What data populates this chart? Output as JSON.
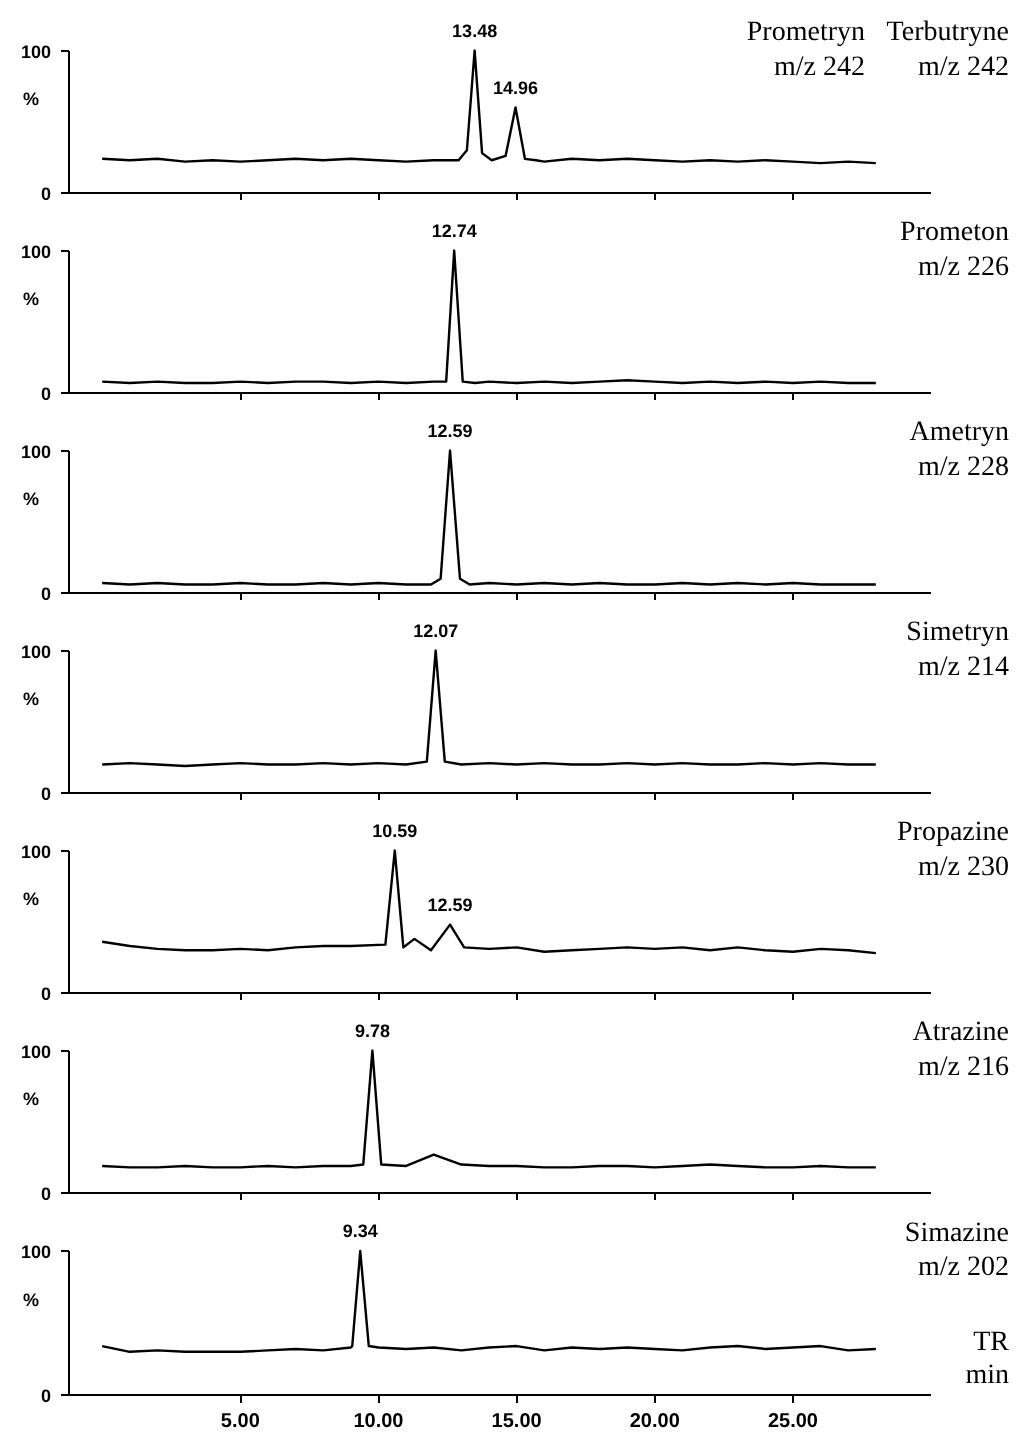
{
  "chart_data": [
    {
      "type": "line",
      "x": [
        0,
        1,
        2,
        3,
        4,
        5,
        6,
        7,
        8,
        9,
        10,
        11,
        12,
        12.9,
        13.2,
        13.48,
        13.75,
        14.1,
        14.6,
        14.96,
        15.3,
        15.7,
        16,
        17,
        18,
        19,
        20,
        21,
        22,
        23,
        24,
        25,
        26,
        27,
        28
      ],
      "values": [
        24,
        23,
        24,
        22,
        23,
        22,
        23,
        24,
        23,
        24,
        23,
        22,
        23,
        23,
        30,
        100,
        28,
        23,
        26,
        60,
        24,
        23,
        22,
        24,
        23,
        24,
        23,
        22,
        23,
        22,
        23,
        22,
        21,
        22,
        21
      ],
      "color": "#000000",
      "xlim": [
        -1.2,
        30
      ],
      "ylim": [
        0,
        100
      ],
      "xticks": [
        {
          "value": 5,
          "label": null
        },
        {
          "value": 10,
          "label": null
        },
        {
          "value": 15,
          "label": null
        },
        {
          "value": 20,
          "label": null
        },
        {
          "value": 25,
          "label": null
        }
      ],
      "yticks": [
        0,
        100
      ],
      "ylabel": "%",
      "tick_labels": "y",
      "annotations": [
        {
          "text": "13.48",
          "x": 13.48,
          "y": 100
        },
        {
          "text": "14.96",
          "x": 14.96,
          "y": 60
        },
        "Prometryn\nm/z 242",
        "Terbutryne\nm/z 242"
      ]
    },
    {
      "type": "line",
      "x": [
        0,
        1,
        2,
        3,
        4,
        5,
        6,
        7,
        8,
        9,
        10,
        11,
        12,
        12.45,
        12.74,
        13.05,
        13.5,
        14,
        15,
        16,
        17,
        18,
        19,
        20,
        21,
        22,
        23,
        24,
        25,
        26,
        27,
        28
      ],
      "values": [
        8,
        7,
        8,
        7,
        7,
        8,
        7,
        8,
        8,
        7,
        8,
        7,
        8,
        8,
        100,
        8,
        7,
        8,
        7,
        8,
        7,
        8,
        9,
        8,
        7,
        8,
        7,
        8,
        7,
        8,
        7,
        7
      ],
      "color": "#000000",
      "xlim": [
        -1.2,
        30
      ],
      "ylim": [
        0,
        100
      ],
      "xticks": [
        {
          "value": 5,
          "label": null
        },
        {
          "value": 10,
          "label": null
        },
        {
          "value": 15,
          "label": null
        },
        {
          "value": 20,
          "label": null
        },
        {
          "value": 25,
          "label": null
        }
      ],
      "yticks": [
        0,
        100
      ],
      "ylabel": "%",
      "tick_labels": "y",
      "annotations": [
        {
          "text": "12.74",
          "x": 12.74,
          "y": 100
        },
        "Prometon\nm/z 226"
      ]
    },
    {
      "type": "line",
      "x": [
        0,
        1,
        2,
        3,
        4,
        5,
        6,
        7,
        8,
        9,
        10,
        11,
        11.9,
        12.25,
        12.59,
        12.95,
        13.3,
        14,
        15,
        16,
        17,
        18,
        19,
        20,
        21,
        22,
        23,
        24,
        25,
        26,
        27,
        28
      ],
      "values": [
        7,
        6,
        7,
        6,
        6,
        7,
        6,
        6,
        7,
        6,
        7,
        6,
        6,
        10,
        100,
        10,
        6,
        7,
        6,
        7,
        6,
        7,
        6,
        6,
        7,
        6,
        7,
        6,
        7,
        6,
        6,
        6
      ],
      "color": "#000000",
      "xlim": [
        -1.2,
        30
      ],
      "ylim": [
        0,
        100
      ],
      "xticks": [
        {
          "value": 5,
          "label": null
        },
        {
          "value": 10,
          "label": null
        },
        {
          "value": 15,
          "label": null
        },
        {
          "value": 20,
          "label": null
        },
        {
          "value": 25,
          "label": null
        }
      ],
      "yticks": [
        0,
        100
      ],
      "ylabel": "%",
      "tick_labels": "y",
      "annotations": [
        {
          "text": "12.59",
          "x": 12.59,
          "y": 100
        },
        "Ametryn\nm/z 228"
      ]
    },
    {
      "type": "line",
      "x": [
        0,
        1,
        2,
        3,
        4,
        5,
        6,
        7,
        8,
        9,
        10,
        11,
        11.75,
        12.07,
        12.4,
        13,
        14,
        15,
        16,
        17,
        18,
        19,
        20,
        21,
        22,
        23,
        24,
        25,
        26,
        27,
        28
      ],
      "values": [
        20,
        21,
        20,
        19,
        20,
        21,
        20,
        20,
        21,
        20,
        21,
        20,
        22,
        100,
        22,
        20,
        21,
        20,
        21,
        20,
        20,
        21,
        20,
        21,
        20,
        20,
        21,
        20,
        21,
        20,
        20
      ],
      "color": "#000000",
      "xlim": [
        -1.2,
        30
      ],
      "ylim": [
        0,
        100
      ],
      "xticks": [
        {
          "value": 5,
          "label": null
        },
        {
          "value": 10,
          "label": null
        },
        {
          "value": 15,
          "label": null
        },
        {
          "value": 20,
          "label": null
        },
        {
          "value": 25,
          "label": null
        }
      ],
      "yticks": [
        0,
        100
      ],
      "ylabel": "%",
      "tick_labels": "y",
      "annotations": [
        {
          "text": "12.07",
          "x": 12.07,
          "y": 100
        },
        "Simetryn\nm/z 214"
      ]
    },
    {
      "type": "line",
      "x": [
        0,
        1,
        2,
        3,
        4,
        5,
        6,
        7,
        8,
        9,
        10.25,
        10.59,
        10.9,
        11.3,
        11.9,
        12.59,
        13.1,
        14,
        15,
        16,
        17,
        18,
        19,
        20,
        21,
        22,
        23,
        24,
        25,
        26,
        27,
        28
      ],
      "values": [
        36,
        33,
        31,
        30,
        30,
        31,
        30,
        32,
        33,
        33,
        34,
        100,
        32,
        38,
        30,
        48,
        32,
        31,
        32,
        29,
        30,
        31,
        32,
        31,
        32,
        30,
        32,
        30,
        29,
        31,
        30,
        28
      ],
      "color": "#000000",
      "xlim": [
        -1.2,
        30
      ],
      "ylim": [
        0,
        100
      ],
      "xticks": [
        {
          "value": 5,
          "label": null
        },
        {
          "value": 10,
          "label": null
        },
        {
          "value": 15,
          "label": null
        },
        {
          "value": 20,
          "label": null
        },
        {
          "value": 25,
          "label": null
        }
      ],
      "yticks": [
        0,
        100
      ],
      "ylabel": "%",
      "tick_labels": "y",
      "annotations": [
        {
          "text": "10.59",
          "x": 10.59,
          "y": 100
        },
        {
          "text": "12.59",
          "x": 12.59,
          "y": 48
        },
        "Propazine\nm/z 230"
      ]
    },
    {
      "type": "line",
      "x": [
        0,
        1,
        2,
        3,
        4,
        5,
        6,
        7,
        8,
        9,
        9.45,
        9.78,
        10.1,
        11,
        12,
        13,
        14,
        15,
        16,
        17,
        18,
        19,
        20,
        21,
        22,
        23,
        24,
        25,
        26,
        27,
        28
      ],
      "values": [
        19,
        18,
        18,
        19,
        18,
        18,
        19,
        18,
        19,
        19,
        20,
        100,
        20,
        19,
        27,
        20,
        19,
        19,
        18,
        18,
        19,
        19,
        18,
        19,
        20,
        19,
        18,
        18,
        19,
        18,
        18
      ],
      "color": "#000000",
      "xlim": [
        -1.2,
        30
      ],
      "ylim": [
        0,
        100
      ],
      "xticks": [
        {
          "value": 5,
          "label": null
        },
        {
          "value": 10,
          "label": null
        },
        {
          "value": 15,
          "label": null
        },
        {
          "value": 20,
          "label": null
        },
        {
          "value": 25,
          "label": null
        }
      ],
      "yticks": [
        0,
        100
      ],
      "ylabel": "%",
      "tick_labels": "y",
      "annotations": [
        {
          "text": "9.78",
          "x": 9.78,
          "y": 100
        },
        "Atrazine\nm/z 216"
      ]
    },
    {
      "type": "line",
      "x": [
        0,
        1,
        2,
        3,
        4,
        5,
        6,
        7,
        8,
        9,
        9.05,
        9.34,
        9.65,
        10,
        11,
        12,
        13,
        14,
        15,
        16,
        17,
        18,
        19,
        20,
        21,
        22,
        23,
        24,
        25,
        26,
        27,
        28
      ],
      "values": [
        34,
        30,
        31,
        30,
        30,
        30,
        31,
        32,
        31,
        33,
        34,
        100,
        34,
        33,
        32,
        33,
        31,
        33,
        34,
        31,
        33,
        32,
        33,
        32,
        31,
        33,
        34,
        32,
        33,
        34,
        31,
        32
      ],
      "color": "#000000",
      "xlim": [
        -1.2,
        30
      ],
      "ylim": [
        0,
        100
      ],
      "xticks": [
        {
          "value": 5,
          "label": "5.00"
        },
        {
          "value": 10,
          "label": "10.00"
        },
        {
          "value": 15,
          "label": "15.00"
        },
        {
          "value": 20,
          "label": "20.00"
        },
        {
          "value": 25,
          "label": "25.00"
        }
      ],
      "yticks": [
        0,
        100
      ],
      "ylabel": "%",
      "xlabel": "TR\nmin",
      "annotations": [
        {
          "text": "9.34",
          "x": 9.34,
          "y": 100
        },
        "Simazine\nm/z 202"
      ]
    }
  ]
}
